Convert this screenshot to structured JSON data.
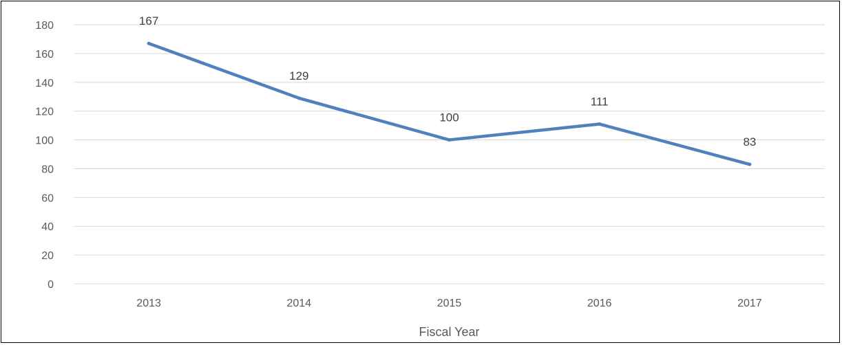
{
  "chart_data": {
    "type": "line",
    "title": "",
    "xlabel": "Fiscal Year",
    "ylabel": "",
    "categories": [
      "2013",
      "2014",
      "2015",
      "2016",
      "2017"
    ],
    "series": [
      {
        "values": [
          167,
          129,
          100,
          111,
          83
        ],
        "color": "#4f81bd"
      }
    ],
    "data_labels": [
      "167",
      "129",
      "100",
      "111",
      "83"
    ],
    "ylim": [
      0,
      180
    ],
    "yticks": [
      0,
      20,
      40,
      60,
      80,
      100,
      120,
      140,
      160,
      180
    ],
    "ytick_labels": [
      "0",
      "20",
      "40",
      "60",
      "80",
      "100",
      "120",
      "140",
      "160",
      "180"
    ],
    "grid": true,
    "legend": "none",
    "gridline_color": "#d9d9d9"
  }
}
